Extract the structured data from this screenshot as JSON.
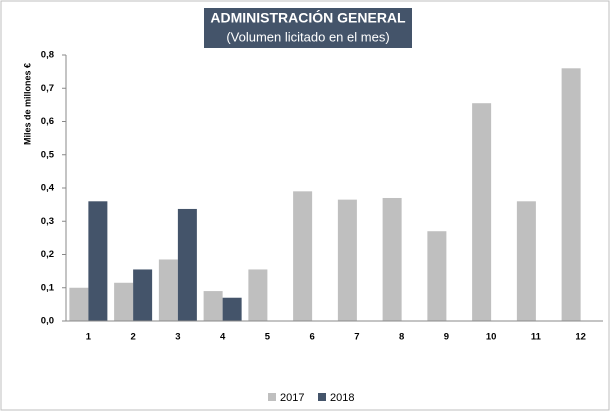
{
  "chart_data": {
    "type": "bar",
    "title": "ADMINISTRACIÓN GENERAL",
    "subtitle": "(Volumen licitado en el mes)",
    "y_label": "Miles de millones €",
    "categories": [
      "1",
      "2",
      "3",
      "4",
      "5",
      "6",
      "7",
      "8",
      "9",
      "10",
      "11",
      "12"
    ],
    "series": [
      {
        "name": "2017",
        "color": "#bfbfbf",
        "values": [
          0.1,
          0.115,
          0.185,
          0.09,
          0.155,
          0.39,
          0.365,
          0.37,
          0.27,
          0.655,
          0.36,
          0.76
        ]
      },
      {
        "name": "2018",
        "color": "#44546a",
        "values": [
          0.36,
          0.155,
          0.337,
          0.07,
          null,
          null,
          null,
          null,
          null,
          null,
          null,
          null
        ]
      }
    ],
    "ylim": [
      0,
      0.8
    ],
    "yticks": [
      {
        "value": 0,
        "label": "0,0"
      },
      {
        "value": 0.1,
        "label": "0,1"
      },
      {
        "value": 0.2,
        "label": "0,2"
      },
      {
        "value": 0.3,
        "label": "0,3"
      },
      {
        "value": 0.4,
        "label": "0,4"
      },
      {
        "value": 0.5,
        "label": "0,5"
      },
      {
        "value": 0.6,
        "label": "0,6"
      },
      {
        "value": 0.7,
        "label": "0,7"
      },
      {
        "value": 0.8,
        "label": "0,8"
      }
    ],
    "grid": false,
    "legend": "bottom"
  }
}
